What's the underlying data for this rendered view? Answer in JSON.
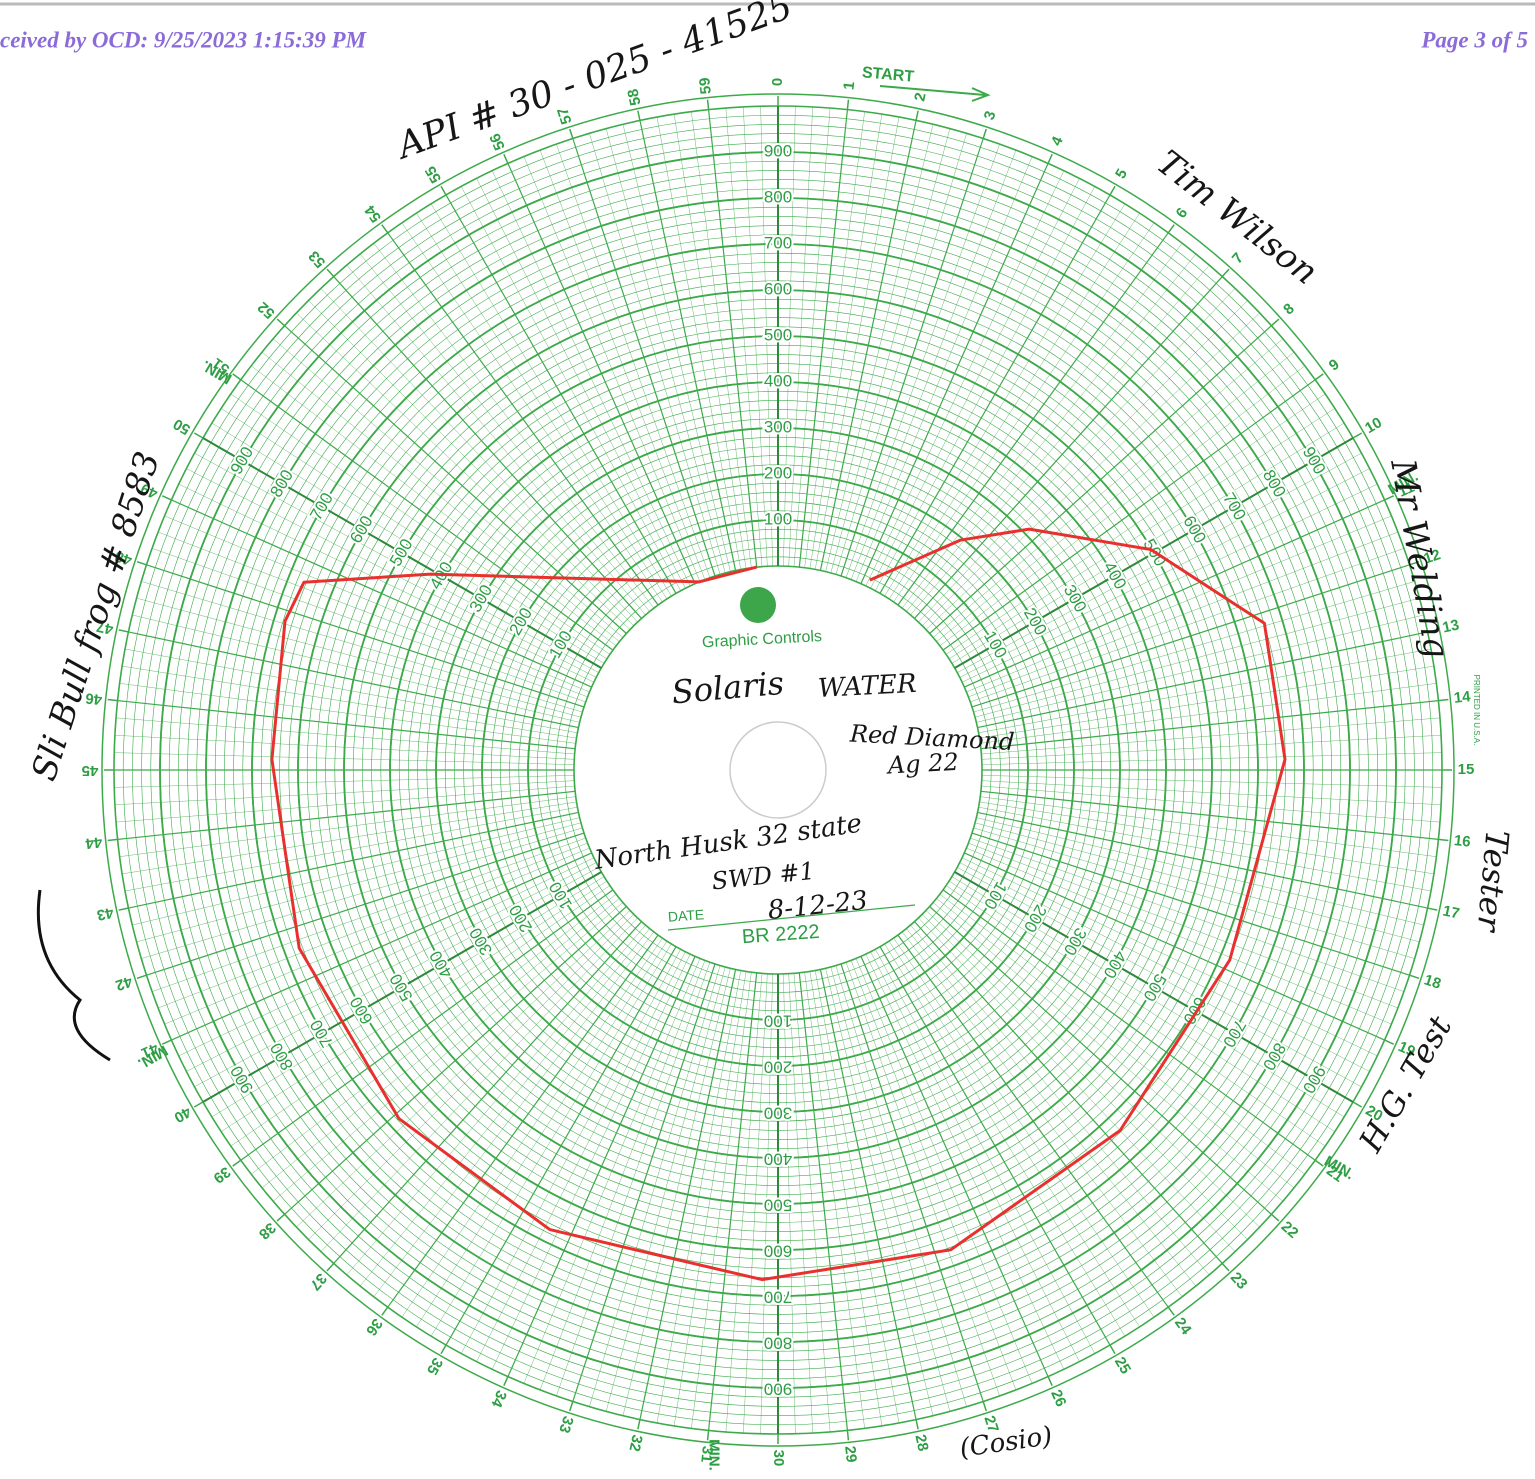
{
  "header": {
    "received": "ceived by OCD: 9/25/2023 1:15:39 PM",
    "page": "Page 3 of 5"
  },
  "chart": {
    "minute_ticks": [
      0,
      1,
      2,
      3,
      4,
      5,
      6,
      7,
      8,
      9,
      10,
      11,
      12,
      13,
      14,
      15,
      16,
      17,
      18,
      19,
      20,
      21,
      22,
      23,
      24,
      25,
      26,
      27,
      28,
      29,
      30,
      31,
      32,
      33,
      34,
      35,
      36,
      37,
      38,
      39,
      40,
      41,
      42,
      43,
      44,
      45,
      46,
      47,
      48,
      49,
      50,
      51,
      52,
      53,
      54,
      55,
      56,
      57,
      58,
      59
    ],
    "pressure_ticks": [
      100,
      200,
      300,
      400,
      500,
      600,
      700,
      800,
      900
    ],
    "trace": {
      "minutes": [
        59.0,
        56.2,
        49.9,
        48.6,
        47.8,
        45.2,
        41.6,
        37.9,
        34.4,
        30.3,
        26.7,
        22.75,
        18.8,
        14.8,
        12.2,
        11.6,
        9.9,
        7.7,
        6.4,
        4.3
      ],
      "pressure": [
        0,
        0,
        424,
        665,
        676,
        657,
        667,
        676,
        672,
        665,
        665,
        637,
        622,
        659,
        661,
        607,
        498,
        313,
        194,
        15
      ]
    },
    "start": "START",
    "min_label": "MIN.",
    "brand": "Graphic Controls",
    "date_label": "DATE",
    "chart_number": "BR 2222",
    "printed": "PRINTED IN U.S.A."
  },
  "handwriting": {
    "api": "API # 30 - 025 - 41525",
    "name": "Tim Wilson",
    "company": "Mr Welding",
    "role": "Tester",
    "test": "H.G. Test",
    "witness": "(Cosio)",
    "well": "Sli Bull frog # 8583",
    "operator": "Solaris",
    "fluid": "WATER",
    "lease": "Red Diamond",
    "lease_no": "Ag 22",
    "site": "North Husk 32 state",
    "swd": "SWD #1",
    "date": "8-12-23"
  }
}
